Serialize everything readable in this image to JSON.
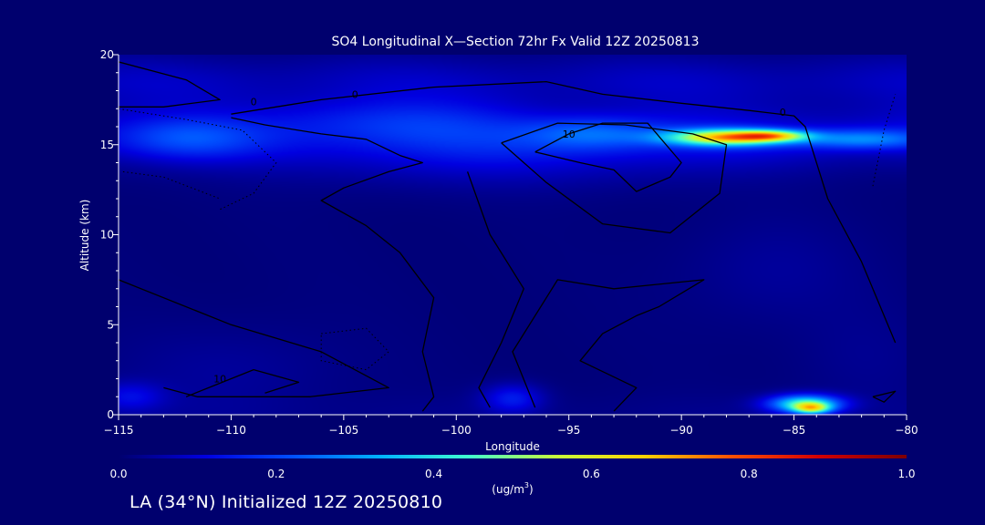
{
  "chart_data": {
    "type": "heatmap",
    "title": "SO4 Longitudinal X—Section 72hr  Fx Valid 12Z 20250813",
    "xlabel": "Longitude",
    "ylabel": "Altitude (km)",
    "xlim": [
      -115,
      -80
    ],
    "ylim": [
      0,
      20
    ],
    "x_ticks": [
      {
        "value": -115,
        "label": "−115"
      },
      {
        "value": -110,
        "label": "−110"
      },
      {
        "value": -105,
        "label": "−105"
      },
      {
        "value": -100,
        "label": "−100"
      },
      {
        "value": -95,
        "label": "−95"
      },
      {
        "value": -90,
        "label": "−90"
      },
      {
        "value": -85,
        "label": "−85"
      },
      {
        "value": -80,
        "label": "−80"
      }
    ],
    "y_ticks": [
      {
        "value": 0,
        "label": "0"
      },
      {
        "value": 5,
        "label": "5"
      },
      {
        "value": 10,
        "label": "10"
      },
      {
        "value": 15,
        "label": "15"
      },
      {
        "value": 20,
        "label": "20"
      }
    ],
    "colorbar": {
      "min": 0.0,
      "max": 1.0,
      "ticks": [
        {
          "value": 0.0,
          "label": "0.0"
        },
        {
          "value": 0.2,
          "label": "0.2"
        },
        {
          "value": 0.4,
          "label": "0.4"
        },
        {
          "value": 0.6,
          "label": "0.6"
        },
        {
          "value": 0.8,
          "label": "0.8"
        },
        {
          "value": 1.0,
          "label": "1.0"
        }
      ],
      "unit_base": "(ug/m",
      "unit_sup": "3",
      "unit_end": ")",
      "colors": [
        "#00006e",
        "#0000e0",
        "#0050ff",
        "#00b4ff",
        "#40ffd0",
        "#c8ff3c",
        "#ffd200",
        "#ff5000",
        "#d20000",
        "#7d0000"
      ]
    },
    "features": [
      {
        "x": -88,
        "y": 15.4,
        "sx": 2.6,
        "sy": 0.45,
        "v": 0.55
      },
      {
        "x": -86,
        "y": 15.5,
        "sx": 1.6,
        "sy": 0.3,
        "v": 0.35
      },
      {
        "x": -82,
        "y": 15.3,
        "sx": 3.0,
        "sy": 0.55,
        "v": 0.2
      },
      {
        "x": -94,
        "y": 15.6,
        "sx": 3.0,
        "sy": 0.9,
        "v": 0.14
      },
      {
        "x": -103,
        "y": 16.4,
        "sx": 6.0,
        "sy": 1.3,
        "v": 0.08
      },
      {
        "x": -112,
        "y": 15.3,
        "sx": 3.0,
        "sy": 1.1,
        "v": 0.1
      },
      {
        "x": -98,
        "y": 14.2,
        "sx": 10.0,
        "sy": 1.7,
        "v": 0.06
      },
      {
        "x": -84.5,
        "y": 0.6,
        "sx": 1.6,
        "sy": 0.5,
        "v": 0.42
      },
      {
        "x": -84.2,
        "y": 0.35,
        "sx": 0.8,
        "sy": 0.3,
        "v": 0.35
      },
      {
        "x": -97.5,
        "y": 0.9,
        "sx": 1.3,
        "sy": 0.8,
        "v": 0.13
      },
      {
        "x": -114.5,
        "y": 1.0,
        "sx": 1.5,
        "sy": 0.8,
        "v": 0.1
      },
      {
        "x": -110,
        "y": 2.5,
        "sx": 5.0,
        "sy": 2.5,
        "v": 0.03
      },
      {
        "x": -86,
        "y": 8.0,
        "sx": 4.0,
        "sy": 3.0,
        "v": 0.03
      },
      {
        "x": -82,
        "y": 3.0,
        "sx": 3.0,
        "sy": 3.0,
        "v": 0.02
      }
    ],
    "contours": [
      {
        "label": "0",
        "label_at": [
          -109,
          17.4
        ],
        "points": [
          [
            -115,
            19.6
          ],
          [
            -112,
            18.6
          ],
          [
            -110.5,
            17.5
          ],
          [
            -113,
            17.1
          ],
          [
            -115,
            17.1
          ]
        ]
      },
      {
        "label": "0",
        "label_at": [
          -104.5,
          17.8
        ],
        "points": [
          [
            -110,
            16.5
          ],
          [
            -108.5,
            16.1
          ],
          [
            -106,
            15.6
          ],
          [
            -104,
            15.3
          ],
          [
            -102.5,
            14.4
          ],
          [
            -101.5,
            14.0
          ],
          [
            -103,
            13.5
          ],
          [
            -105,
            12.6
          ],
          [
            -106,
            11.9
          ],
          [
            -104,
            10.5
          ],
          [
            -102.5,
            9.0
          ],
          [
            -101.0,
            6.5
          ],
          [
            -101.5,
            3.5
          ],
          [
            -101.0,
            1.0
          ],
          [
            -101.5,
            0.2
          ]
        ]
      },
      {
        "label": "0",
        "label_at": [
          -85.5,
          16.8
        ],
        "points": [
          [
            -110,
            16.7
          ],
          [
            -106,
            17.5
          ],
          [
            -101,
            18.2
          ],
          [
            -96,
            18.5
          ],
          [
            -93.5,
            17.8
          ],
          [
            -90,
            17.3
          ],
          [
            -87,
            16.9
          ],
          [
            -85,
            16.6
          ],
          [
            -84.5,
            16.0
          ],
          [
            -83.5,
            12.0
          ],
          [
            -82.0,
            8.5
          ],
          [
            -80.5,
            4.0
          ]
        ]
      },
      {
        "label": "10",
        "label_at": [
          -95.0,
          15.6
        ],
        "points": [
          [
            -96.5,
            14.6
          ],
          [
            -95.0,
            15.6
          ],
          [
            -93.5,
            16.2
          ],
          [
            -91.5,
            16.2
          ],
          [
            -90,
            14.0
          ],
          [
            -90.5,
            13.2
          ],
          [
            -92,
            12.4
          ],
          [
            -93,
            13.6
          ],
          [
            -94.5,
            14.0
          ],
          [
            -96.5,
            14.6
          ]
        ]
      },
      {
        "points": [
          [
            -98.0,
            15.1
          ],
          [
            -95.5,
            16.2
          ],
          [
            -92.5,
            16.1
          ],
          [
            -89.5,
            15.6
          ],
          [
            -88,
            15.0
          ],
          [
            -88.3,
            12.3
          ],
          [
            -90.5,
            10.1
          ],
          [
            -93.5,
            10.6
          ],
          [
            -96,
            12.9
          ],
          [
            -98.0,
            15.1
          ]
        ]
      },
      {
        "points": [
          [
            -99.5,
            13.5
          ],
          [
            -98.5,
            10.0
          ],
          [
            -97.0,
            7.0
          ],
          [
            -98.0,
            4.0
          ],
          [
            -99.0,
            1.5
          ],
          [
            -98.5,
            0.4
          ]
        ]
      },
      {
        "points": [
          [
            -96.5,
            0.4
          ],
          [
            -97.5,
            3.5
          ],
          [
            -95.5,
            7.5
          ],
          [
            -93.0,
            7.0
          ],
          [
            -89,
            7.5
          ],
          [
            -91,
            6.0
          ],
          [
            -92.0,
            5.5
          ],
          [
            -93.5,
            4.5
          ],
          [
            -94.5,
            3.0
          ],
          [
            -92.0,
            1.5
          ],
          [
            -93.0,
            0.2
          ]
        ]
      },
      {
        "label": "10",
        "label_at": [
          -110.5,
          2.0
        ],
        "points": [
          [
            -115,
            7.5
          ],
          [
            -110,
            5.0
          ],
          [
            -106,
            3.5
          ],
          [
            -103,
            1.5
          ],
          [
            -106.5,
            1.0
          ],
          [
            -111.5,
            1.0
          ],
          [
            -113,
            1.5
          ]
        ]
      },
      {
        "points": [
          [
            -112,
            1.0
          ],
          [
            -109.0,
            2.5
          ],
          [
            -107.0,
            1.8
          ],
          [
            -108.5,
            1.2
          ]
        ]
      },
      {
        "points": [
          [
            -81.5,
            1.0
          ],
          [
            -80.5,
            1.3
          ],
          [
            -81,
            0.7
          ],
          [
            -81.5,
            1.0
          ]
        ]
      }
    ],
    "dotted_contours": [
      {
        "points": [
          [
            -115,
            17.0
          ],
          [
            -112,
            16.4
          ],
          [
            -109.5,
            15.8
          ],
          [
            -108.0,
            14.0
          ],
          [
            -109,
            12.3
          ],
          [
            -110.5,
            11.4
          ]
        ]
      },
      {
        "points": [
          [
            -114.8,
            13.5
          ],
          [
            -113,
            13.2
          ],
          [
            -110.5,
            12.0
          ]
        ]
      },
      {
        "points": [
          [
            -81.5,
            12.7
          ],
          [
            -81,
            15.8
          ],
          [
            -80.5,
            17.8
          ]
        ]
      },
      {
        "points": [
          [
            -106,
            4.5
          ],
          [
            -104,
            4.8
          ],
          [
            -103,
            3.5
          ],
          [
            -104,
            2.5
          ],
          [
            -106,
            3.0
          ],
          [
            -106,
            4.5
          ]
        ]
      }
    ]
  },
  "footer": "LA (34°N) Initialized 12Z 20250810"
}
